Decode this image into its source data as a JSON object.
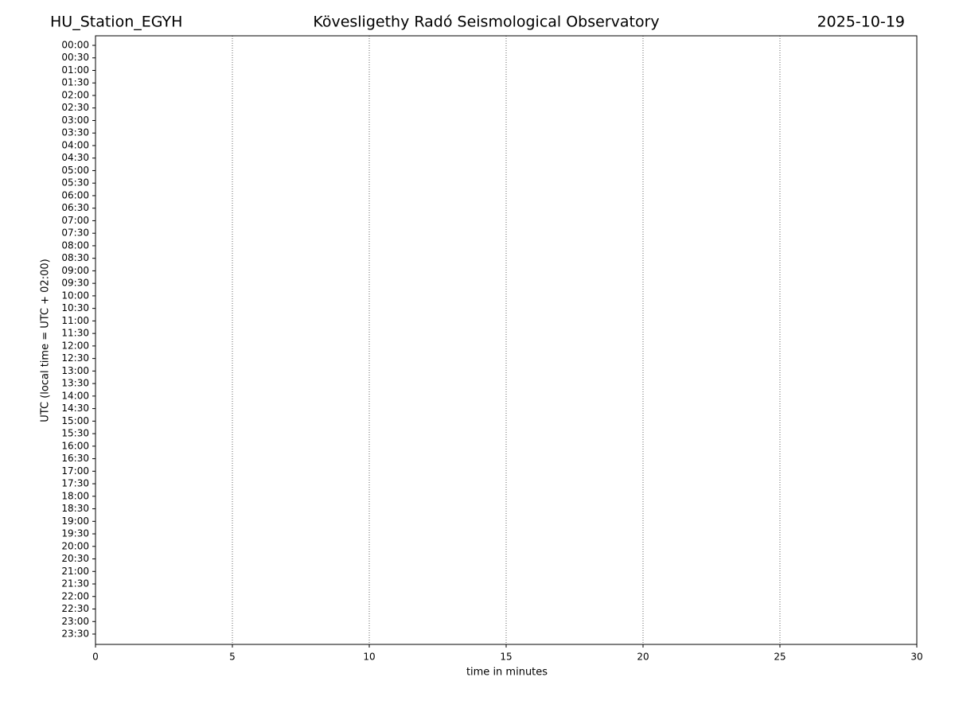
{
  "chart_data": {
    "type": "helicorder",
    "station": "HU_Station_EGYH",
    "title": "Kövesligethy Radó Seismological Observatory",
    "date": "2025-10-19",
    "xlabel": "time in minutes",
    "ylabel": "UTC (local time = UTC + 02:00)",
    "xlim": [
      0,
      30
    ],
    "xticks": [
      0,
      5,
      10,
      15,
      20,
      25,
      30
    ],
    "grid": true,
    "colors": [
      "#0000ff",
      "#ff0000"
    ],
    "categories": [
      "00:00",
      "00:30",
      "01:00",
      "01:30",
      "02:00",
      "02:30",
      "03:00",
      "03:30",
      "04:00",
      "04:30",
      "05:00",
      "05:30",
      "06:00",
      "06:30",
      "07:00",
      "07:30",
      "08:00",
      "08:30",
      "09:00",
      "09:30",
      "10:00",
      "10:30",
      "11:00",
      "11:30",
      "12:00",
      "12:30",
      "13:00",
      "13:30",
      "14:00",
      "14:30",
      "15:00",
      "15:30",
      "16:00",
      "16:30",
      "17:00",
      "17:30",
      "18:00",
      "18:30",
      "19:00",
      "19:30",
      "20:00",
      "20:30",
      "21:00",
      "21:30",
      "22:00",
      "22:30",
      "23:00",
      "23:30"
    ]
  }
}
